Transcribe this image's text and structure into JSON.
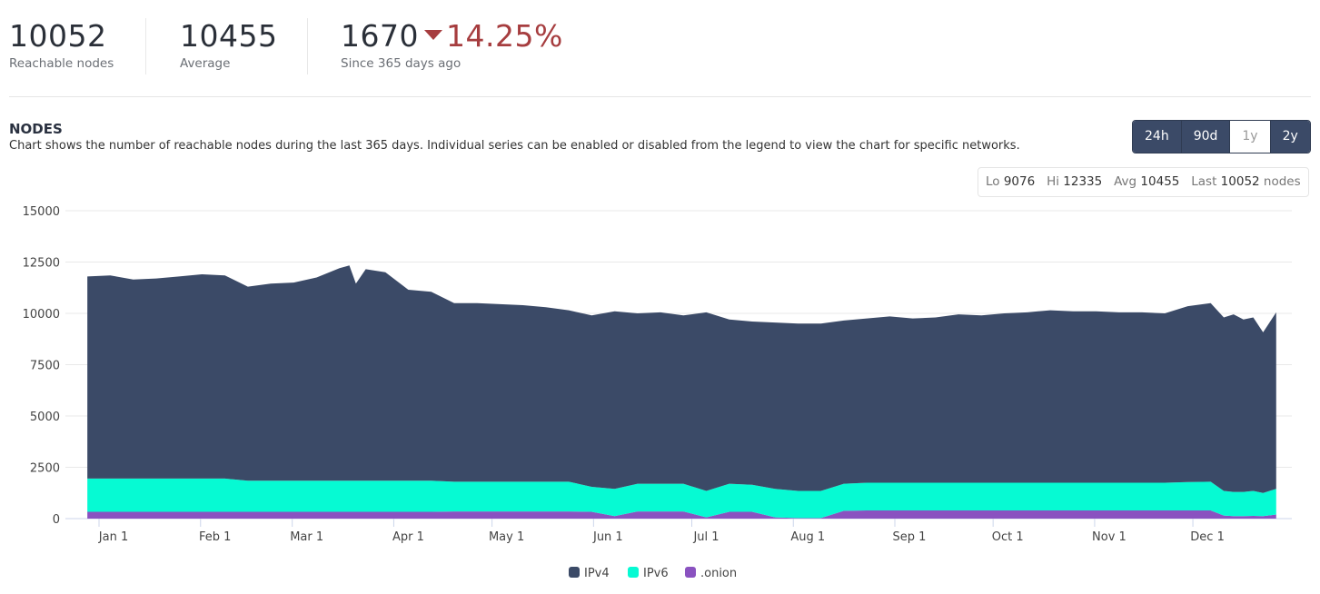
{
  "stats": [
    {
      "value": "10052",
      "label": "Reachable nodes"
    },
    {
      "value": "10455",
      "label": "Average"
    },
    {
      "value": "1670",
      "change": "14.25%",
      "direction": "down",
      "label": "Since 365 days ago"
    }
  ],
  "section": {
    "title": "NODES",
    "description": "Chart shows the number of reachable nodes during the last 365 days. Individual series can be enabled or disabled from the legend to view the chart for specific networks."
  },
  "range_buttons": [
    {
      "label": "24h",
      "active": true
    },
    {
      "label": "90d",
      "active": true
    },
    {
      "label": "1y",
      "active": false
    },
    {
      "label": "2y",
      "active": true
    }
  ],
  "summary": {
    "lo_label": "Lo",
    "lo": "9076",
    "hi_label": "Hi",
    "hi": "12335",
    "avg_label": "Avg",
    "avg": "10455",
    "last_label": "Last",
    "last": "10052",
    "unit": "nodes"
  },
  "colors": {
    "ipv4": "#3b4a67",
    "ipv6": "#06fad3",
    "onion": "#8a52c0",
    "down": "#a63d3f"
  },
  "chart_data": {
    "type": "area",
    "stacked": true,
    "title": "NODES",
    "xlabel": "",
    "ylabel": "",
    "ylim": [
      0,
      15000
    ],
    "yticks": [
      "0",
      "2500",
      "5000",
      "7500",
      "10000",
      "12500",
      "15000"
    ],
    "xticks": [
      {
        "day": 0,
        "label": "Jan 1"
      },
      {
        "day": 31,
        "label": "Feb 1"
      },
      {
        "day": 59,
        "label": "Mar 1"
      },
      {
        "day": 90,
        "label": "Apr 1"
      },
      {
        "day": 120,
        "label": "May 1"
      },
      {
        "day": 151,
        "label": "Jun 1"
      },
      {
        "day": 181,
        "label": "Jul 1"
      },
      {
        "day": 212,
        "label": "Aug 1"
      },
      {
        "day": 243,
        "label": "Sep 1"
      },
      {
        "day": 273,
        "label": "Oct 1"
      },
      {
        "day": 304,
        "label": "Nov 1"
      },
      {
        "day": 334,
        "label": "Dec 1"
      }
    ],
    "x_unit": "days since Jan 1",
    "x": [
      -8,
      -1,
      6,
      13,
      20,
      27,
      34,
      41,
      48,
      55,
      62,
      69,
      72,
      74,
      77,
      83,
      90,
      97,
      104,
      111,
      118,
      125,
      132,
      139,
      146,
      153,
      160,
      167,
      174,
      181,
      188,
      195,
      202,
      209,
      216,
      223,
      230,
      237,
      244,
      251,
      258,
      265,
      272,
      279,
      286,
      293,
      300,
      307,
      314,
      321,
      328,
      335,
      339,
      342,
      345,
      348,
      351,
      355
    ],
    "series": [
      {
        "name": "IPv4",
        "color": "#3b4a67",
        "values": [
          9850,
          9900,
          9700,
          9750,
          9850,
          9950,
          9900,
          9450,
          9600,
          9650,
          9900,
          10350,
          10485,
          9600,
          10300,
          10150,
          9300,
          9200,
          8700,
          8700,
          8650,
          8600,
          8500,
          8350,
          8350,
          8650,
          8300,
          8350,
          8200,
          8700,
          8000,
          7950,
          8100,
          8150,
          8150,
          7950,
          8000,
          8100,
          8000,
          8050,
          8200,
          8150,
          8250,
          8300,
          8400,
          8350,
          8350,
          8300,
          8300,
          8250,
          8570,
          8700,
          8450,
          8650,
          8400,
          8450,
          7826,
          8602
        ]
      },
      {
        "name": "IPv6",
        "color": "#06fad3",
        "values": [
          1620,
          1620,
          1620,
          1620,
          1620,
          1620,
          1620,
          1520,
          1520,
          1520,
          1520,
          1520,
          1520,
          1520,
          1520,
          1520,
          1520,
          1520,
          1450,
          1450,
          1450,
          1450,
          1450,
          1450,
          1220,
          1330,
          1350,
          1350,
          1350,
          1290,
          1370,
          1320,
          1390,
          1320,
          1320,
          1320,
          1350,
          1350,
          1350,
          1350,
          1350,
          1350,
          1350,
          1350,
          1350,
          1350,
          1350,
          1350,
          1350,
          1350,
          1380,
          1400,
          1200,
          1180,
          1180,
          1220,
          1130,
          1250
        ]
      },
      {
        "name": ".onion",
        "color": "#8a52c0",
        "values": [
          330,
          330,
          330,
          330,
          330,
          330,
          330,
          330,
          330,
          330,
          330,
          330,
          330,
          330,
          330,
          330,
          330,
          330,
          350,
          350,
          350,
          350,
          350,
          350,
          330,
          120,
          350,
          350,
          350,
          60,
          330,
          330,
          60,
          30,
          30,
          380,
          400,
          400,
          400,
          400,
          400,
          400,
          400,
          400,
          400,
          400,
          400,
          400,
          400,
          400,
          400,
          400,
          150,
          120,
          120,
          130,
          120,
          200
        ]
      }
    ],
    "legend": {
      "position": "bottom-center"
    },
    "grid": true
  }
}
